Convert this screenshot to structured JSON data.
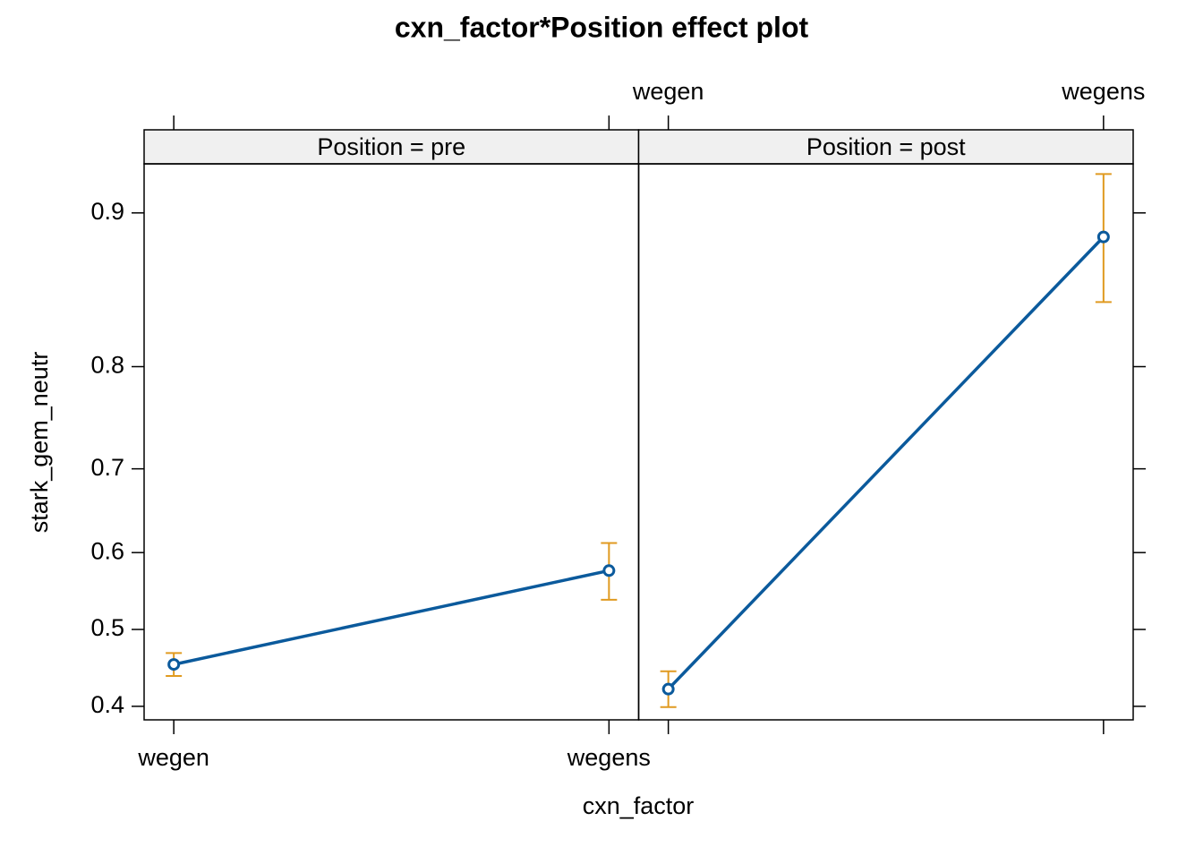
{
  "chart_data": {
    "type": "line",
    "title": "cxn_factor*Position effect plot",
    "xlabel": "cxn_factor",
    "ylabel": "stark_gem_neutr",
    "categories": [
      "wegen",
      "wegens"
    ],
    "y_scale": "logit",
    "ylim": [
      0.383,
      0.921
    ],
    "yticks": [
      0.4,
      0.5,
      0.6,
      0.7,
      0.8,
      0.9
    ],
    "line_color": "#0b5a9c",
    "error_color": "#e09a20",
    "panels": [
      {
        "strip": "Position = pre",
        "values": [
          0.454,
          0.577
        ],
        "lower": [
          0.439,
          0.539
        ],
        "upper": [
          0.469,
          0.612
        ]
      },
      {
        "strip": "Position = post",
        "values": [
          0.422,
          0.888
        ],
        "lower": [
          0.399,
          0.849
        ],
        "upper": [
          0.445,
          0.917
        ]
      }
    ]
  }
}
